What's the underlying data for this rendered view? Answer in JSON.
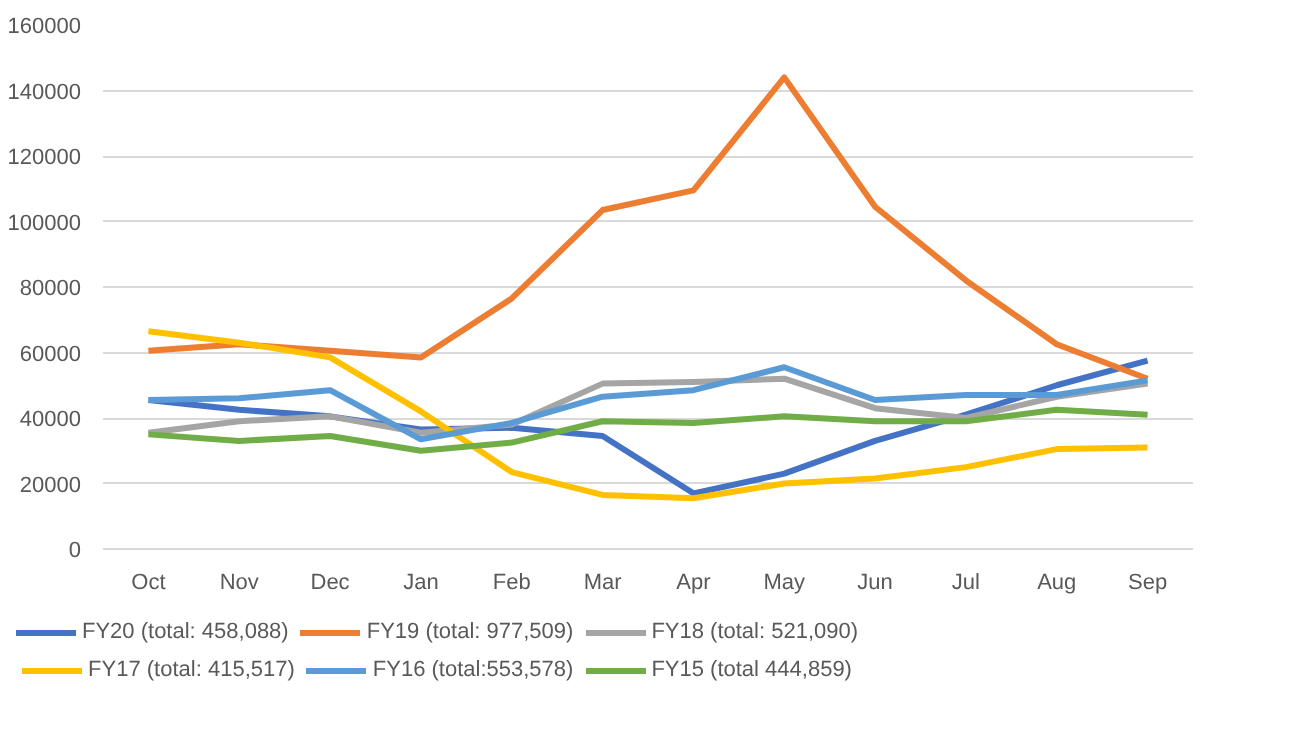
{
  "chart_data": {
    "type": "line",
    "categories": [
      "Oct",
      "Nov",
      "Dec",
      "Jan",
      "Feb",
      "Mar",
      "Apr",
      "May",
      "Jun",
      "Jul",
      "Aug",
      "Sep"
    ],
    "ylim": [
      0,
      160000
    ],
    "yticks": [
      0,
      20000,
      40000,
      60000,
      80000,
      100000,
      120000,
      140000,
      160000
    ],
    "grid": "y",
    "legend": "bottom",
    "marker": "none",
    "line_style": "solid",
    "series": [
      {
        "name": "FY20 (total: 458,088)",
        "color": "#4472c4",
        "values": [
          45500,
          42500,
          40500,
          36500,
          37000,
          34500,
          17000,
          23000,
          33000,
          41000,
          50000,
          57500
        ]
      },
      {
        "name": "FY19 (total: 977,509)",
        "color": "#ed7d31",
        "values": [
          60500,
          62500,
          60500,
          58500,
          76500,
          103500,
          109500,
          144000,
          104500,
          82000,
          62500,
          52000
        ]
      },
      {
        "name": "FY18 (total: 521,090)",
        "color": "#a5a5a5",
        "values": [
          35500,
          39000,
          40500,
          35500,
          38000,
          50500,
          51000,
          52000,
          43000,
          40000,
          46500,
          50500
        ]
      },
      {
        "name": "FY17 (total: 415,517)",
        "color": "#ffc000",
        "values": [
          66500,
          63000,
          58500,
          42000,
          23500,
          16500,
          15500,
          20000,
          21500,
          25000,
          30500,
          31000
        ]
      },
      {
        "name": "FY16 (total:553,578)",
        "color": "#5b9bd5",
        "values": [
          45500,
          46000,
          48500,
          33500,
          38500,
          46500,
          48500,
          55500,
          45500,
          47000,
          47000,
          51500
        ]
      },
      {
        "name": "FY15 (total 444,859)",
        "color": "#70ad47",
        "values": [
          35000,
          33000,
          34500,
          30000,
          32500,
          39000,
          38500,
          40500,
          39000,
          39000,
          42500,
          41000
        ]
      }
    ]
  }
}
